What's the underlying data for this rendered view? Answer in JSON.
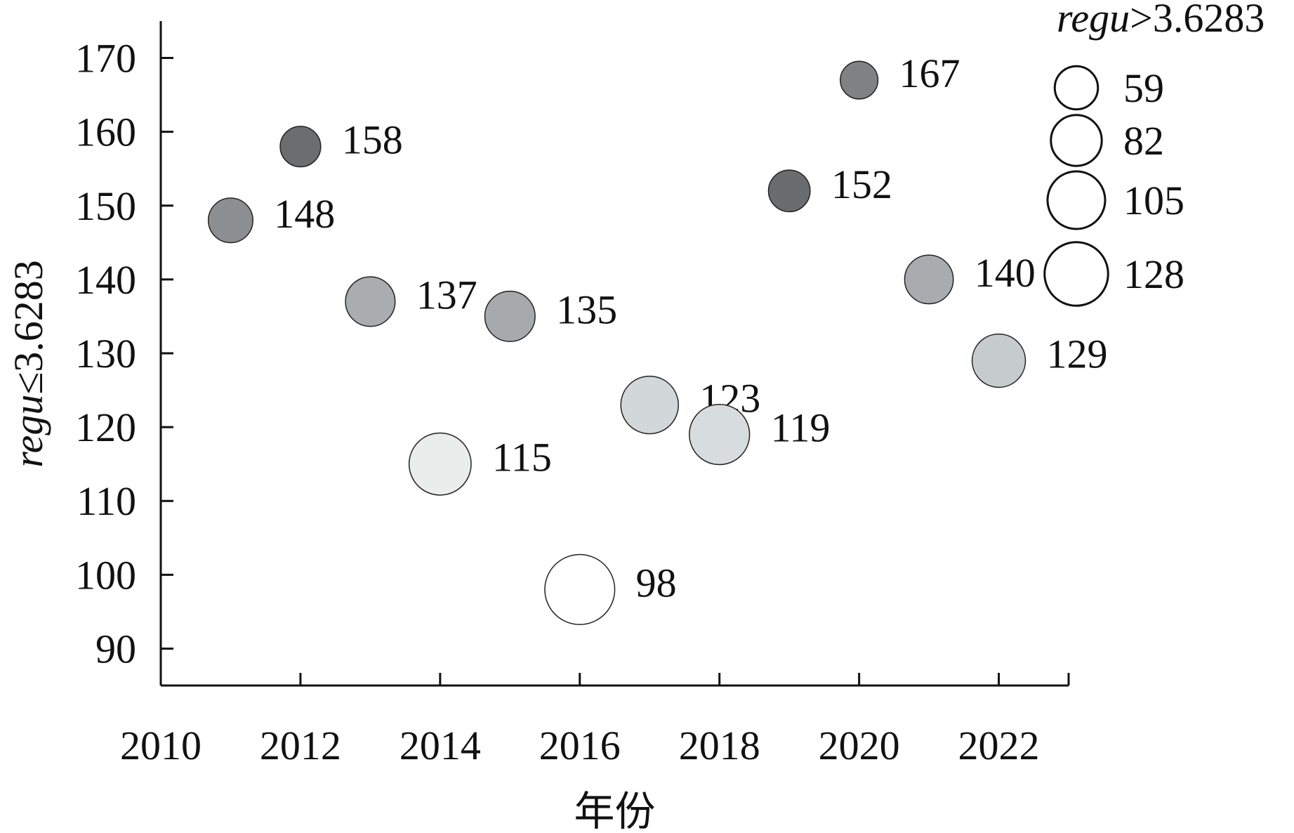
{
  "chart_data": {
    "type": "scatter",
    "title": "",
    "xlabel": "年份",
    "ylabel_prefix": "regu",
    "ylabel_suffix": "≤3.6283",
    "size_legend_title_prefix": "regu",
    "size_legend_title_suffix": ">3.6283",
    "xlim": [
      2010,
      2023
    ],
    "ylim": [
      85,
      175
    ],
    "x_ticks": [
      2010,
      2012,
      2014,
      2016,
      2018,
      2020,
      2022
    ],
    "y_ticks": [
      90,
      100,
      110,
      120,
      130,
      140,
      150,
      160,
      170
    ],
    "points": [
      {
        "x": 2011,
        "y": 148,
        "label": "148",
        "size_value": 63,
        "color": "#8c8f91"
      },
      {
        "x": 2012,
        "y": 158,
        "label": "158",
        "size_value": 52,
        "color": "#6b6d6f"
      },
      {
        "x": 2013,
        "y": 137,
        "label": "137",
        "size_value": 78,
        "color": "#a9adaf"
      },
      {
        "x": 2014,
        "y": 115,
        "label": "115",
        "size_value": 122,
        "color": "#e9eeed"
      },
      {
        "x": 2015,
        "y": 135,
        "label": "135",
        "size_value": 80,
        "color": "#a6aaac"
      },
      {
        "x": 2016,
        "y": 98,
        "label": "98",
        "size_value": 155,
        "color": "#ffffff"
      },
      {
        "x": 2017,
        "y": 123,
        "label": "123",
        "size_value": 105,
        "color": "#d2d7d9"
      },
      {
        "x": 2018,
        "y": 119,
        "label": "119",
        "size_value": 115,
        "color": "#d7dcde"
      },
      {
        "x": 2019,
        "y": 152,
        "label": "152",
        "size_value": 55,
        "color": "#6a6c6e"
      },
      {
        "x": 2020,
        "y": 167,
        "label": "167",
        "size_value": 45,
        "color": "#7f8183"
      },
      {
        "x": 2021,
        "y": 140,
        "label": "140",
        "size_value": 75,
        "color": "#a8acae"
      },
      {
        "x": 2022,
        "y": 129,
        "label": "129",
        "size_value": 90,
        "color": "#c6cbcc"
      }
    ],
    "size_legend": [
      {
        "value": 59,
        "label": "59"
      },
      {
        "value": 82,
        "label": "82"
      },
      {
        "value": 105,
        "label": "105"
      },
      {
        "value": 128,
        "label": "128"
      }
    ],
    "legend_placement": "top-right",
    "grid": false
  }
}
